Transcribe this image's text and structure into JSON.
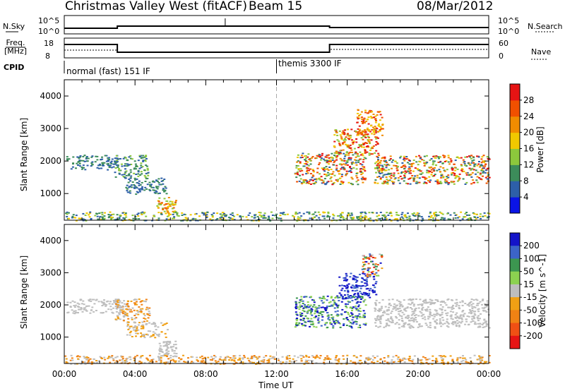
{
  "header": {
    "station": "Christmas Valley West (fitACF)",
    "beam": "Beam 15",
    "date": "08/Mar/2012"
  },
  "status_panels": {
    "nsky_label": "N.Sky",
    "nsearch_label": "N.Search",
    "nsky_ticks": [
      "10^5",
      "10^0"
    ],
    "nsearch_ticks": [
      "10^5",
      "10^0"
    ],
    "freq_label": "Freq. [MHz]",
    "freq_ticks": [
      "18",
      "8"
    ],
    "nave_label": "Nave",
    "nave_ticks": [
      "60",
      "0"
    ],
    "cpid_label": "CPID",
    "cpid_segments": [
      {
        "label": "normal (fast) 151 IF",
        "start_hour": 0
      },
      {
        "label": "themis 3300 IF",
        "start_hour": 12
      }
    ]
  },
  "time_axis": {
    "label": "Time UT",
    "ticks": [
      "00:00",
      "04:00",
      "08:00",
      "12:00",
      "16:00",
      "20:00",
      "00:00"
    ]
  },
  "chart_data": [
    {
      "type": "heatmap",
      "title": "",
      "parameter": "Power",
      "xlabel": "Time UT",
      "ylabel": "Slant Range [km]",
      "xlim": [
        0,
        24
      ],
      "ylim": [
        180,
        4500
      ],
      "yticks": [
        1000,
        2000,
        3000,
        4000
      ],
      "color_scale": {
        "label": "Power [dB]",
        "ticks": [
          "4",
          "8",
          "12",
          "16",
          "20",
          "24",
          "28"
        ],
        "colors": [
          "#0a14e6",
          "#2d5fa8",
          "#3c8c5a",
          "#8cc83c",
          "#f0c800",
          "#f08c00",
          "#f05000",
          "#e61414"
        ]
      },
      "regions": [
        {
          "t": [
            0.1,
            3.0
          ],
          "r": [
            1750,
            2200
          ],
          "level": [
            1,
            2
          ]
        },
        {
          "t": [
            2.8,
            4.7
          ],
          "r": [
            1500,
            2200
          ],
          "level": [
            1,
            3
          ]
        },
        {
          "t": [
            3.4,
            5.8
          ],
          "r": [
            1000,
            1500
          ],
          "level": [
            1,
            2
          ]
        },
        {
          "t": [
            5.2,
            6.3
          ],
          "r": [
            400,
            900
          ],
          "level": [
            3,
            6
          ]
        },
        {
          "t": [
            0.0,
            24.0
          ],
          "r": [
            180,
            450
          ],
          "level": [
            1,
            4
          ]
        },
        {
          "t": [
            13.0,
            17.0
          ],
          "r": [
            1300,
            2300
          ],
          "level": [
            1,
            7
          ]
        },
        {
          "t": [
            15.2,
            17.7
          ],
          "r": [
            2200,
            3000
          ],
          "level": [
            3,
            7
          ]
        },
        {
          "t": [
            16.5,
            18.0
          ],
          "r": [
            2800,
            3600
          ],
          "level": [
            4,
            7
          ]
        },
        {
          "t": [
            17.5,
            24.0
          ],
          "r": [
            1300,
            2200
          ],
          "level": [
            1,
            7
          ]
        }
      ]
    },
    {
      "type": "heatmap",
      "title": "",
      "parameter": "Velocity",
      "xlabel": "Time UT",
      "ylabel": "Slant Range [km]",
      "xlim": [
        0,
        24
      ],
      "ylim": [
        180,
        4500
      ],
      "yticks": [
        1000,
        2000,
        3000,
        4000
      ],
      "color_scale": {
        "label": "Velocity [m s^-1]",
        "ticks": [
          "200",
          "100",
          "50",
          "15",
          "-15",
          "-50",
          "-100",
          "-200"
        ],
        "colors": [
          "#1414c8",
          "#3c64c8",
          "#3c9650",
          "#8cd250",
          "#bebebe",
          "#f0a014",
          "#f08214",
          "#f05014",
          "#e61414"
        ]
      },
      "regions": [
        {
          "t": [
            0.1,
            3.2
          ],
          "r": [
            1750,
            2200
          ],
          "level": [
            4,
            4
          ]
        },
        {
          "t": [
            2.8,
            4.8
          ],
          "r": [
            1500,
            2200
          ],
          "level": [
            4,
            6
          ]
        },
        {
          "t": [
            3.5,
            5.8
          ],
          "r": [
            1000,
            1500
          ],
          "level": [
            4,
            5
          ]
        },
        {
          "t": [
            5.3,
            6.3
          ],
          "r": [
            400,
            900
          ],
          "level": [
            4,
            4
          ]
        },
        {
          "t": [
            0.0,
            24.0
          ],
          "r": [
            180,
            450
          ],
          "level": [
            4,
            6
          ]
        },
        {
          "t": [
            13.0,
            17.0
          ],
          "r": [
            1300,
            2300
          ],
          "level": [
            0,
            3
          ]
        },
        {
          "t": [
            15.5,
            17.6
          ],
          "r": [
            2200,
            3000
          ],
          "level": [
            0,
            1
          ]
        },
        {
          "t": [
            16.8,
            18.0
          ],
          "r": [
            2900,
            3600
          ],
          "level": [
            0,
            8
          ]
        },
        {
          "t": [
            17.5,
            24.0
          ],
          "r": [
            1300,
            2200
          ],
          "level": [
            4,
            4
          ]
        }
      ]
    }
  ]
}
